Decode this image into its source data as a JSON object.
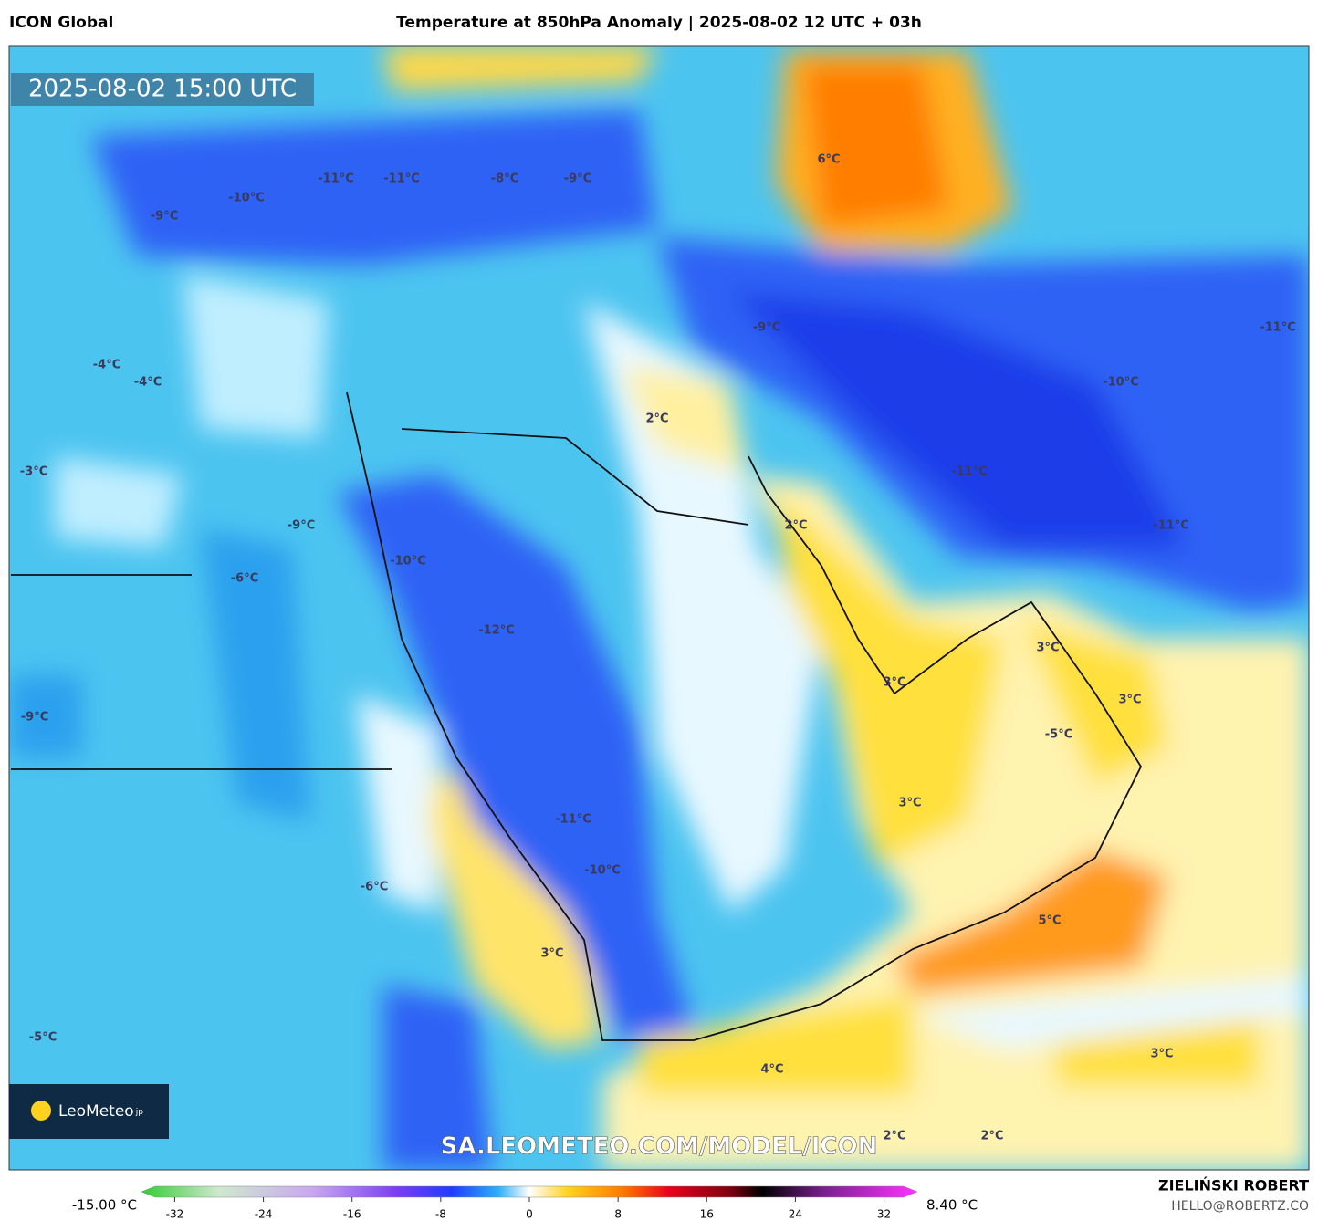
{
  "header": {
    "model": "ICON Global",
    "title": "Temperature at 850hPa Anomaly | 2025-08-02 12 UTC + 03h"
  },
  "map": {
    "timestamp": "2025-08-02 15:00 UTC",
    "logo": "LeoMeteo",
    "logo_suffix": "jp",
    "watermark": "SA.LEOMETEO.COM/MODEL/ICON",
    "labels": [
      "-9°C",
      "-10°C",
      "-11°C",
      "-11°C",
      "-8°C",
      "-9°C",
      "6°C",
      "-9°C",
      "-11°C",
      "-4°C",
      "-4°C",
      "-10°C",
      "2°C",
      "-3°C",
      "-11°C",
      "-9°C",
      "2°C",
      "-11°C",
      "-10°C",
      "-6°C",
      "-12°C",
      "3°C",
      "3°C",
      "3°C",
      "-9°C",
      "-5°C",
      "3°C",
      "-11°C",
      "-10°C",
      "-6°C",
      "5°C",
      "3°C",
      "-5°C",
      "4°C",
      "3°C",
      "2°C",
      "2°C"
    ]
  },
  "colorbar": {
    "min_label": "-15.00 °C",
    "max_label": "8.40 °C",
    "range": [
      -35,
      35
    ],
    "ticks": [
      -32,
      -24,
      -16,
      -8,
      0,
      8,
      16,
      24,
      32
    ]
  },
  "footer": {
    "author": "ZIELIŃSKI ROBERT",
    "contact": "HELLO@ROBERTZ.CO"
  }
}
